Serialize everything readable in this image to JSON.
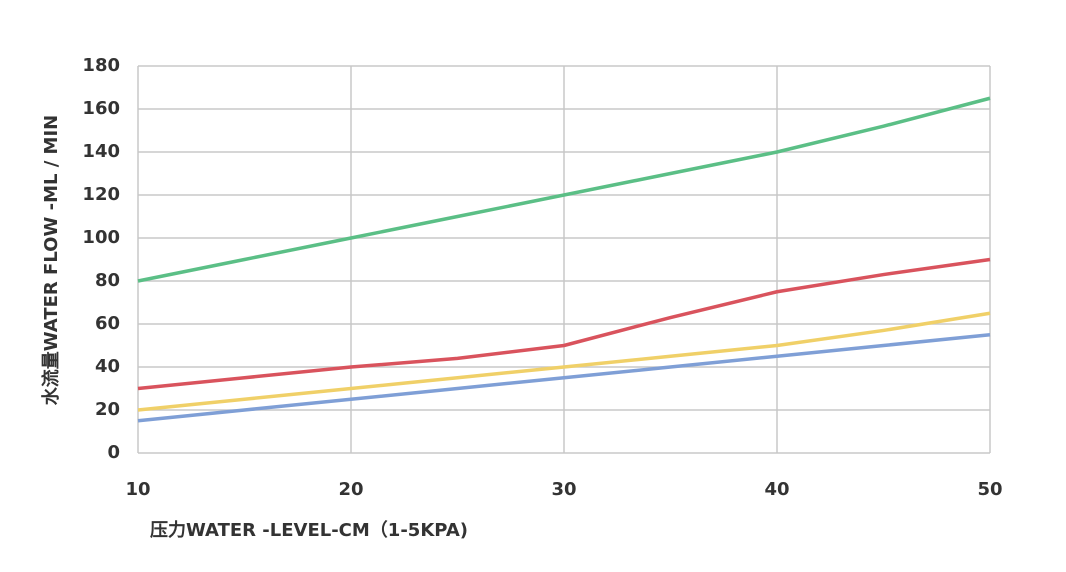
{
  "chart_data": {
    "type": "line",
    "x_label": "压力WATER -LEVEL-CM（1-5KPA)",
    "y_label": "水流量WATER FLOW -ML / MIN",
    "x": [
      10,
      15,
      20,
      25,
      30,
      35,
      40,
      45,
      50
    ],
    "series": [
      {
        "color": "#5bbf86",
        "values": [
          80,
          90,
          100,
          110,
          120,
          130,
          140,
          152,
          165
        ]
      },
      {
        "color": "#d9535d",
        "values": [
          30,
          35,
          40,
          44,
          50,
          63,
          75,
          83,
          90
        ]
      },
      {
        "color": "#f0d068",
        "values": [
          20,
          25,
          30,
          35,
          40,
          45,
          50,
          57,
          65
        ]
      },
      {
        "color": "#7f9fd6",
        "values": [
          15,
          20,
          25,
          30,
          35,
          40,
          45,
          50,
          55
        ]
      }
    ],
    "xlim": [
      10,
      50
    ],
    "xticks": [
      10,
      20,
      30,
      40,
      50
    ],
    "ylim": [
      0,
      180
    ],
    "yticks": [
      0,
      20,
      40,
      60,
      80,
      100,
      120,
      140,
      160,
      180
    ],
    "grid": true
  }
}
